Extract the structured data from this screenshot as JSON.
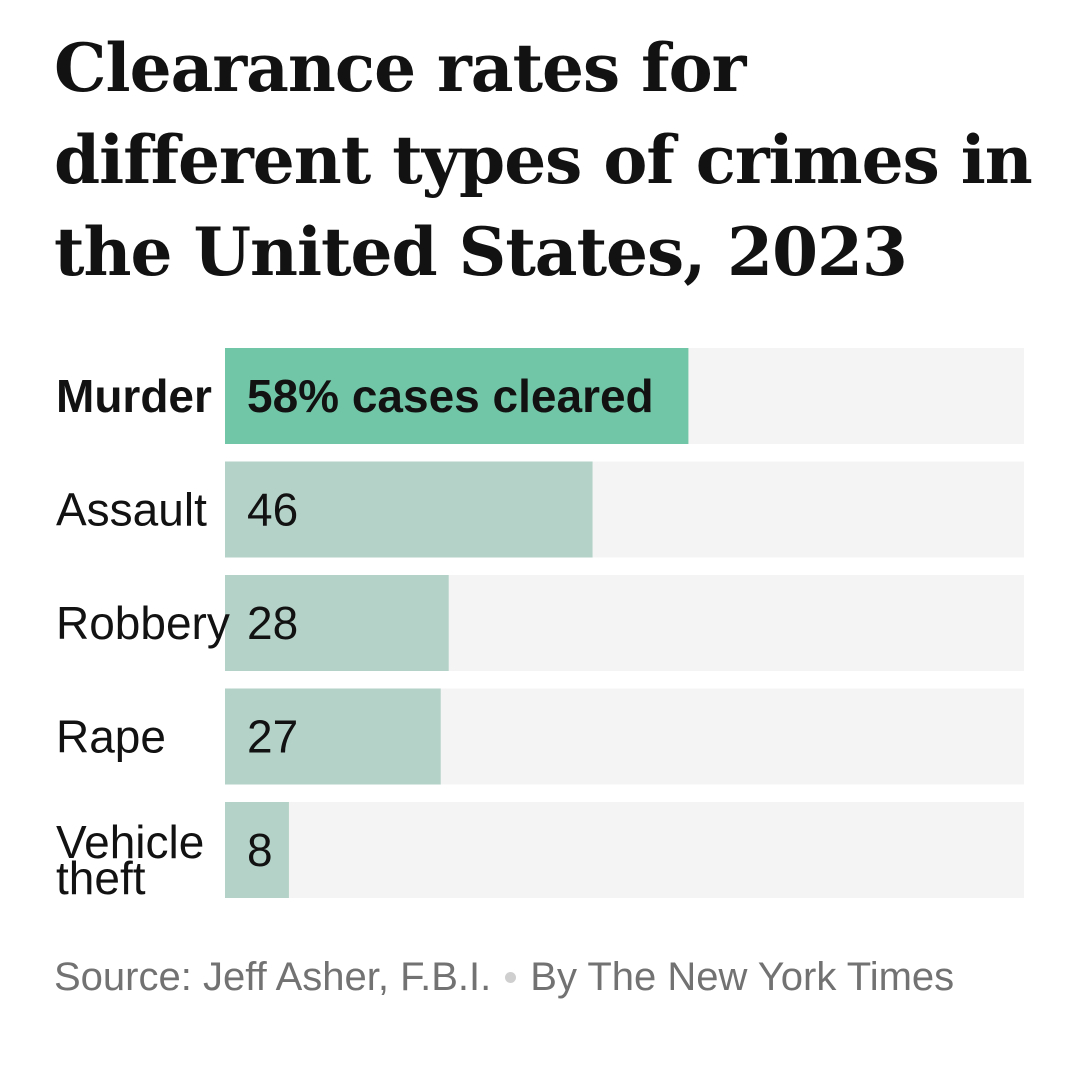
{
  "chart_data": {
    "type": "bar",
    "orientation": "horizontal",
    "title": "Clearance rates for different types of crimes in the United States, 2023",
    "categories": [
      "Murder",
      "Assault",
      "Robbery",
      "Rape",
      [
        "Vehicle",
        "theft"
      ]
    ],
    "values": [
      58,
      46,
      28,
      27,
      8
    ],
    "value_labels": [
      "58% cases cleared",
      "46",
      "28",
      "27",
      "8"
    ],
    "xlim": [
      0,
      100
    ],
    "grid": false,
    "legend": "none",
    "colors": {
      "highlight": "#72c6a8",
      "bar": "#b4d2c7",
      "track": "#f4f4f4"
    }
  },
  "footer": {
    "source": "Source: Jeff Asher, F.B.I.",
    "credit": "By The New York Times"
  }
}
